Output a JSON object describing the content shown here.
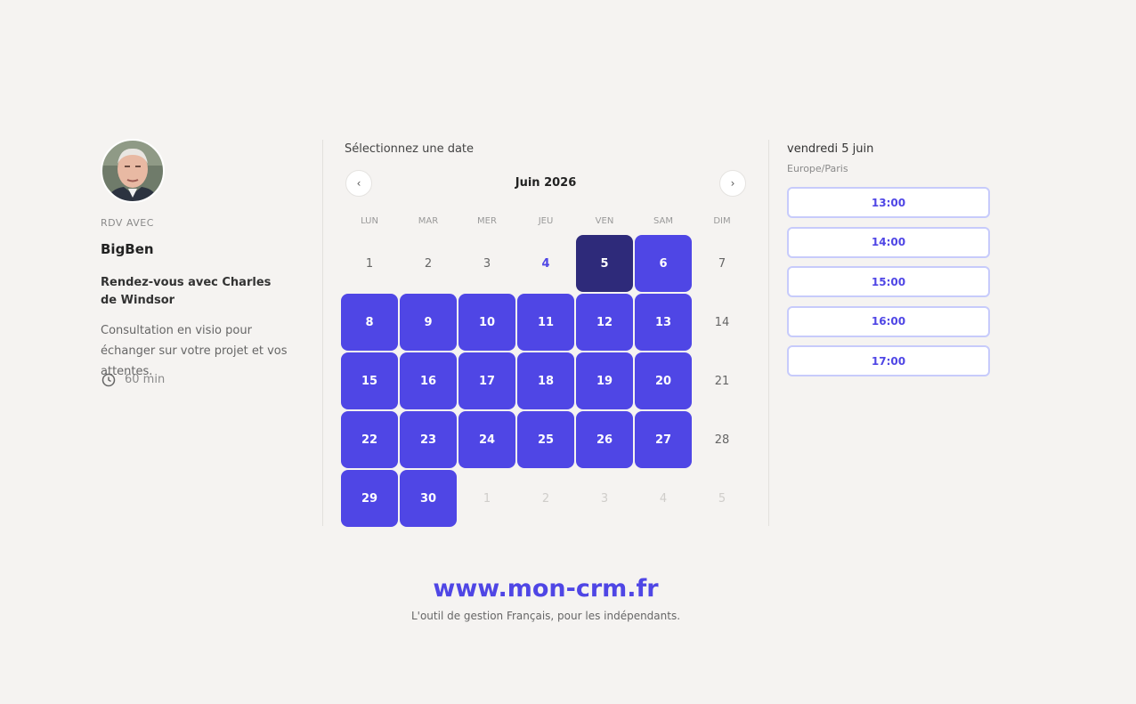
{
  "host": {
    "kicker": "RDV AVEC",
    "name": "BigBen",
    "title": "Rendez-vous avec Charles de Windsor",
    "description": "Consultation en visio pour échanger sur votre projet et vos attentes.",
    "duration": "60 min"
  },
  "calendar": {
    "heading": "Sélectionnez une date",
    "month": "Juin 2026",
    "prev": "‹",
    "next": "›",
    "weekdays": [
      "LUN",
      "MAR",
      "MER",
      "JEU",
      "VEN",
      "SAM",
      "DIM"
    ],
    "weeks": [
      [
        {
          "day": 1,
          "state": "past"
        },
        {
          "day": 2,
          "state": "past"
        },
        {
          "day": 3,
          "state": "past"
        },
        {
          "day": 4,
          "state": "today"
        },
        {
          "day": 5,
          "state": "selected"
        },
        {
          "day": 6,
          "state": "available"
        },
        {
          "day": 7,
          "state": "unavailable"
        }
      ],
      [
        {
          "day": 8,
          "state": "available"
        },
        {
          "day": 9,
          "state": "available"
        },
        {
          "day": 10,
          "state": "available"
        },
        {
          "day": 11,
          "state": "available"
        },
        {
          "day": 12,
          "state": "available"
        },
        {
          "day": 13,
          "state": "available"
        },
        {
          "day": 14,
          "state": "unavailable"
        }
      ],
      [
        {
          "day": 15,
          "state": "available"
        },
        {
          "day": 16,
          "state": "available"
        },
        {
          "day": 17,
          "state": "available"
        },
        {
          "day": 18,
          "state": "available"
        },
        {
          "day": 19,
          "state": "available"
        },
        {
          "day": 20,
          "state": "available"
        },
        {
          "day": 21,
          "state": "unavailable"
        }
      ],
      [
        {
          "day": 22,
          "state": "available"
        },
        {
          "day": 23,
          "state": "available"
        },
        {
          "day": 24,
          "state": "available"
        },
        {
          "day": 25,
          "state": "available"
        },
        {
          "day": 26,
          "state": "available"
        },
        {
          "day": 27,
          "state": "available"
        },
        {
          "day": 28,
          "state": "unavailable"
        }
      ],
      [
        {
          "day": 29,
          "state": "available"
        },
        {
          "day": 30,
          "state": "available"
        },
        {
          "day": 1,
          "state": "outside"
        },
        {
          "day": 2,
          "state": "outside"
        },
        {
          "day": 3,
          "state": "outside"
        },
        {
          "day": 4,
          "state": "outside"
        },
        {
          "day": 5,
          "state": "outside"
        }
      ]
    ]
  },
  "slots": {
    "date": "vendredi 5 juin",
    "timezone": "Europe/Paris",
    "times": [
      "13:00",
      "14:00",
      "15:00",
      "16:00",
      "17:00"
    ]
  },
  "footer": {
    "site": "www.mon-crm.fr",
    "tagline": "L'outil de gestion Français, pour les indépendants."
  }
}
